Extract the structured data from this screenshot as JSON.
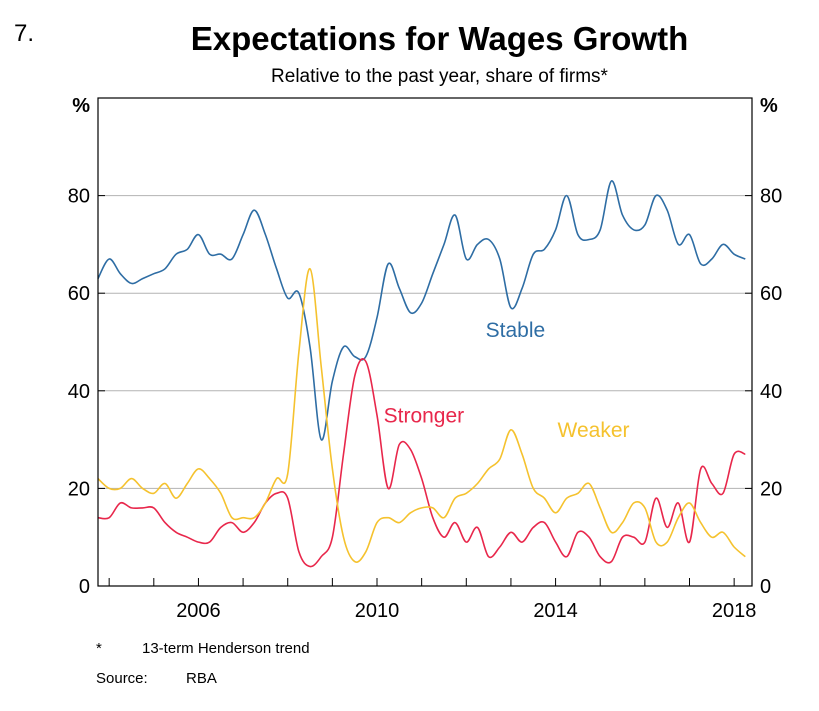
{
  "figure_number": "7.",
  "footnote": {
    "mark": "*",
    "text": "13-term Henderson trend"
  },
  "source": {
    "label": "Source:",
    "text": "RBA"
  },
  "colors": {
    "stable": "#2e6da4",
    "stronger": "#e8274b",
    "weaker": "#f5c22e",
    "grid": "#b3b3b3"
  },
  "chart_data": {
    "type": "line",
    "title": "Expectations for Wages Growth",
    "subtitle": "Relative to the past year, share of firms*",
    "ylabel_left": "%",
    "ylabel_right": "%",
    "xlim": [
      2003.75,
      2018.4
    ],
    "ylim": [
      0,
      100
    ],
    "x_ticks": [
      2006,
      2010,
      2014,
      2018
    ],
    "x_tick_labels": [
      "2006",
      "2010",
      "2014",
      "2018"
    ],
    "y_ticks": [
      0,
      20,
      40,
      60,
      80
    ],
    "y_tick_labels": [
      "0",
      "20",
      "40",
      "60",
      "80"
    ],
    "grid": true,
    "series": [
      {
        "name": "Stable",
        "label_x": 2013.1,
        "label_y": 51,
        "x": [
          2003.75,
          2004.0,
          2004.25,
          2004.5,
          2004.75,
          2005.0,
          2005.25,
          2005.5,
          2005.75,
          2006.0,
          2006.25,
          2006.5,
          2006.75,
          2007.0,
          2007.25,
          2007.5,
          2007.75,
          2008.0,
          2008.25,
          2008.5,
          2008.75,
          2009.0,
          2009.25,
          2009.5,
          2009.75,
          2010.0,
          2010.25,
          2010.5,
          2010.75,
          2011.0,
          2011.25,
          2011.5,
          2011.75,
          2012.0,
          2012.25,
          2012.5,
          2012.75,
          2013.0,
          2013.25,
          2013.5,
          2013.75,
          2014.0,
          2014.25,
          2014.5,
          2014.75,
          2015.0,
          2015.25,
          2015.5,
          2015.75,
          2016.0,
          2016.25,
          2016.5,
          2016.75,
          2017.0,
          2017.25,
          2017.5,
          2017.75,
          2018.0,
          2018.25
        ],
        "values": [
          63,
          67,
          64,
          62,
          63,
          64,
          65,
          68,
          69,
          72,
          68,
          68,
          67,
          72,
          77,
          72,
          65,
          59,
          60,
          49,
          30,
          42,
          49,
          47,
          47,
          55,
          66,
          61,
          56,
          58,
          64,
          70,
          76,
          67,
          70,
          71,
          67,
          57,
          61,
          68,
          69,
          73,
          80,
          72,
          71,
          73,
          83,
          76,
          73,
          74,
          80,
          77,
          70,
          72,
          66,
          67,
          70,
          68,
          67
        ]
      },
      {
        "name": "Stronger",
        "label_x": 2011.05,
        "label_y": 33.5,
        "x": [
          2003.75,
          2004.0,
          2004.25,
          2004.5,
          2004.75,
          2005.0,
          2005.25,
          2005.5,
          2005.75,
          2006.0,
          2006.25,
          2006.5,
          2006.75,
          2007.0,
          2007.25,
          2007.5,
          2007.75,
          2008.0,
          2008.25,
          2008.5,
          2008.75,
          2009.0,
          2009.25,
          2009.5,
          2009.75,
          2010.0,
          2010.25,
          2010.5,
          2010.75,
          2011.0,
          2011.25,
          2011.5,
          2011.75,
          2012.0,
          2012.25,
          2012.5,
          2012.75,
          2013.0,
          2013.25,
          2013.5,
          2013.75,
          2014.0,
          2014.25,
          2014.5,
          2014.75,
          2015.0,
          2015.25,
          2015.5,
          2015.75,
          2016.0,
          2016.25,
          2016.5,
          2016.75,
          2017.0,
          2017.25,
          2017.5,
          2017.75,
          2018.0,
          2018.25
        ],
        "values": [
          14,
          14,
          17,
          16,
          16,
          16,
          13,
          11,
          10,
          9,
          9,
          12,
          13,
          11,
          13,
          17,
          19,
          18,
          7,
          4,
          6,
          10,
          27,
          43,
          46,
          35,
          20,
          29,
          28,
          22,
          14,
          10,
          13,
          9,
          12,
          6,
          8,
          11,
          9,
          12,
          13,
          9,
          6,
          11,
          10,
          6,
          5,
          10,
          10,
          9,
          18,
          12,
          17,
          9,
          24,
          21,
          19,
          27,
          27
        ]
      },
      {
        "name": "Weaker",
        "label_x": 2014.85,
        "label_y": 30.5,
        "x": [
          2003.75,
          2004.0,
          2004.25,
          2004.5,
          2004.75,
          2005.0,
          2005.25,
          2005.5,
          2005.75,
          2006.0,
          2006.25,
          2006.5,
          2006.75,
          2007.0,
          2007.25,
          2007.5,
          2007.75,
          2008.0,
          2008.25,
          2008.5,
          2008.75,
          2009.0,
          2009.25,
          2009.5,
          2009.75,
          2010.0,
          2010.25,
          2010.5,
          2010.75,
          2011.0,
          2011.25,
          2011.5,
          2011.75,
          2012.0,
          2012.25,
          2012.5,
          2012.75,
          2013.0,
          2013.25,
          2013.5,
          2013.75,
          2014.0,
          2014.25,
          2014.5,
          2014.75,
          2015.0,
          2015.25,
          2015.5,
          2015.75,
          2016.0,
          2016.25,
          2016.5,
          2016.75,
          2017.0,
          2017.25,
          2017.5,
          2017.75,
          2018.0,
          2018.25
        ],
        "values": [
          22,
          20,
          20,
          22,
          20,
          19,
          21,
          18,
          21,
          24,
          22,
          19,
          14,
          14,
          14,
          17,
          22,
          23,
          48,
          65,
          45,
          24,
          10,
          5,
          7,
          13,
          14,
          13,
          15,
          16,
          16,
          14,
          18,
          19,
          21,
          24,
          26,
          32,
          27,
          20,
          18,
          15,
          18,
          19,
          21,
          16,
          11,
          13,
          17,
          16,
          9,
          9,
          14,
          17,
          13,
          10,
          11,
          8,
          6
        ]
      }
    ]
  }
}
